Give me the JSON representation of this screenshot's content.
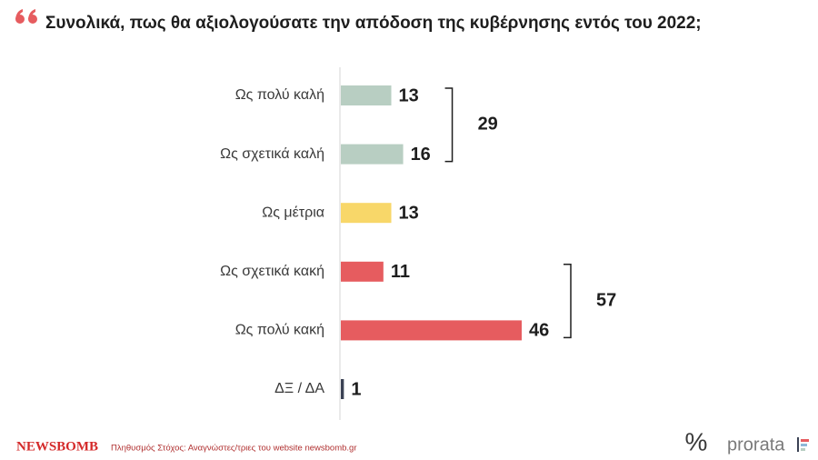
{
  "chart_data": {
    "type": "bar",
    "orientation": "horizontal",
    "title": "Συνολικά, πως θα αξιολογούσατε την απόδοση της κυβέρνησης εντός του 2022;",
    "categories": [
      "Ως πολύ καλή",
      "Ως σχετικά καλή",
      "Ως μέτρια",
      "Ως σχετικά κακή",
      "Ως πολύ κακή",
      "ΔΞ / ΔΑ"
    ],
    "values": [
      13,
      16,
      13,
      11,
      46,
      1
    ],
    "colors": [
      "#b8cec2",
      "#b8cec2",
      "#f8d769",
      "#e65c5f",
      "#e65c5f",
      "#3b4254"
    ],
    "groups": [
      {
        "total": 29,
        "members": [
          0,
          1
        ]
      },
      {
        "total": 57,
        "members": [
          3,
          4
        ]
      }
    ]
  },
  "footer": {
    "brand": "NEWSBOMB",
    "source": "Πληθυσμός Στόχος: Αναγνώστες/τριες του website newsbomb.gr",
    "logo_symbol": "%",
    "logo": "prorata"
  }
}
